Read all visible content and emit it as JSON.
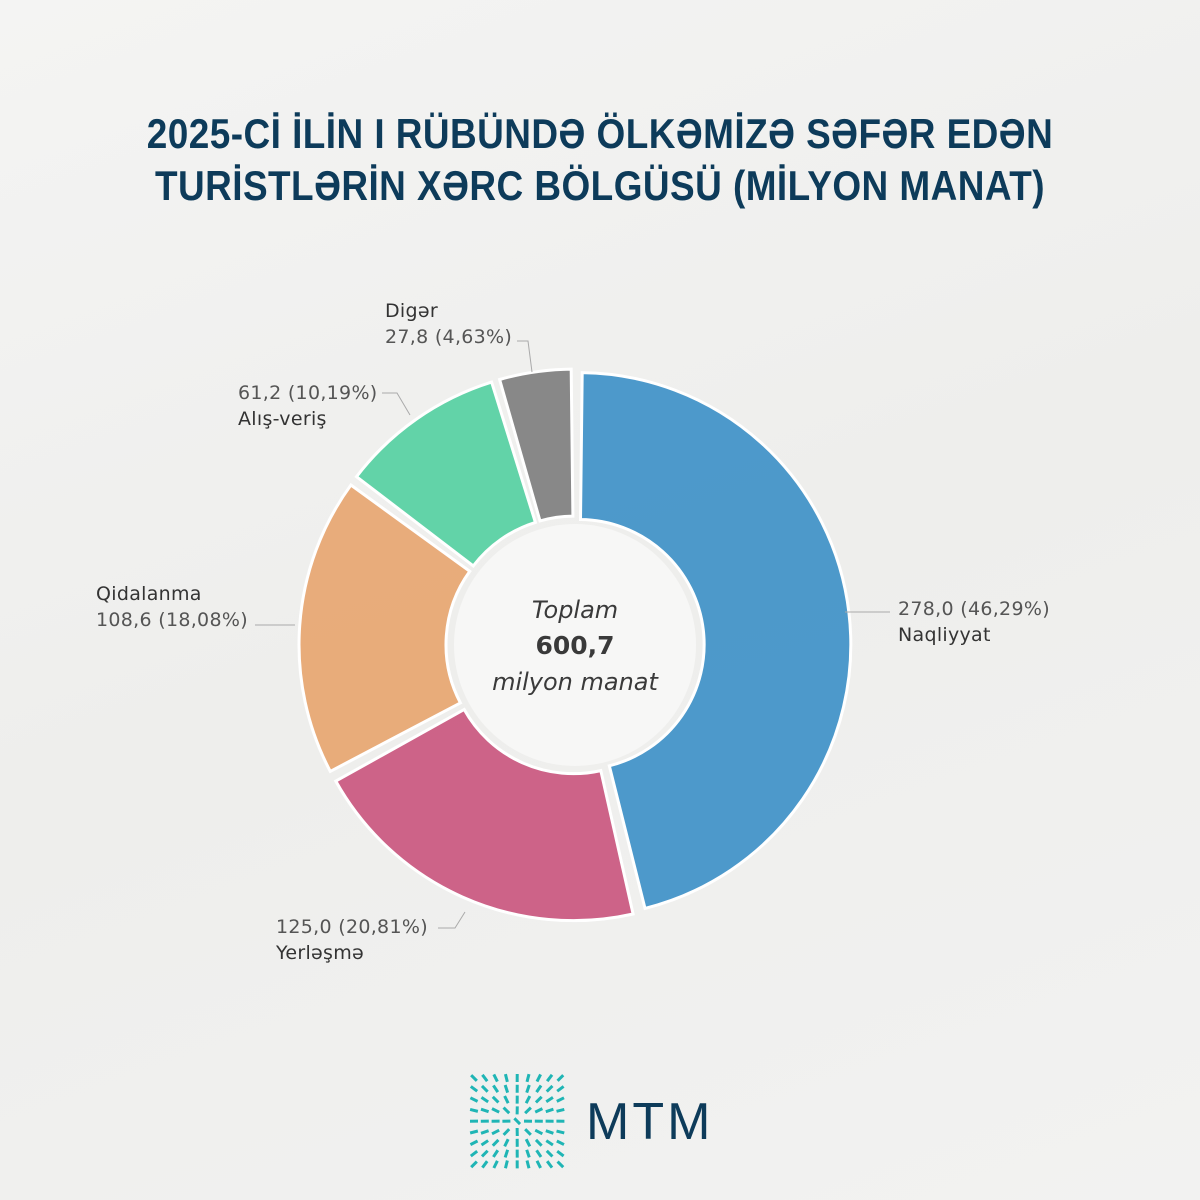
{
  "title_line1": "2025-Cİ İLİN I RÜBÜNDƏ ÖLKƏMİZƏ SƏFƏR EDƏN",
  "title_line2": "TURİSTLƏRİN XƏRC BÖLGÜSÜ (MİLYON MANAT)",
  "center": {
    "label": "Toplam",
    "value": "600,7",
    "unit": "milyon manat"
  },
  "chart_data": {
    "type": "pie",
    "donut": true,
    "title": "2025-Cİ İLİN I RÜBÜNDƏ ÖLKƏMİZƏ SƏFƏR EDƏN TURİSTLƏRİN XƏRC BÖLGÜSÜ (MİLYON MANAT)",
    "total": 600.7,
    "slices": [
      {
        "name": "Naqliyyat",
        "value": 278.0,
        "percent": 46.29,
        "value_label": "278,0 (46,29%)",
        "color": "#3b8fc6"
      },
      {
        "name": "Yerləşmə",
        "value": 125.0,
        "percent": 20.81,
        "value_label": "125,0 (20,81%)",
        "color": "#c9537c"
      },
      {
        "name": "Qidalanma",
        "value": 108.6,
        "percent": 18.08,
        "value_label": "108,6 (18,08%)",
        "color": "#e7a46e"
      },
      {
        "name": "Alış-veriş",
        "value": 61.2,
        "percent": 10.19,
        "value_label": "61,2 (10,19%)",
        "color": "#52cfa0"
      },
      {
        "name": "Digər",
        "value": 27.8,
        "percent": 4.63,
        "value_label": "27,8 (4,63%)",
        "color": "#7c7c7c"
      }
    ]
  },
  "logo": {
    "text": "MTM",
    "color": "#1fb5b5"
  }
}
